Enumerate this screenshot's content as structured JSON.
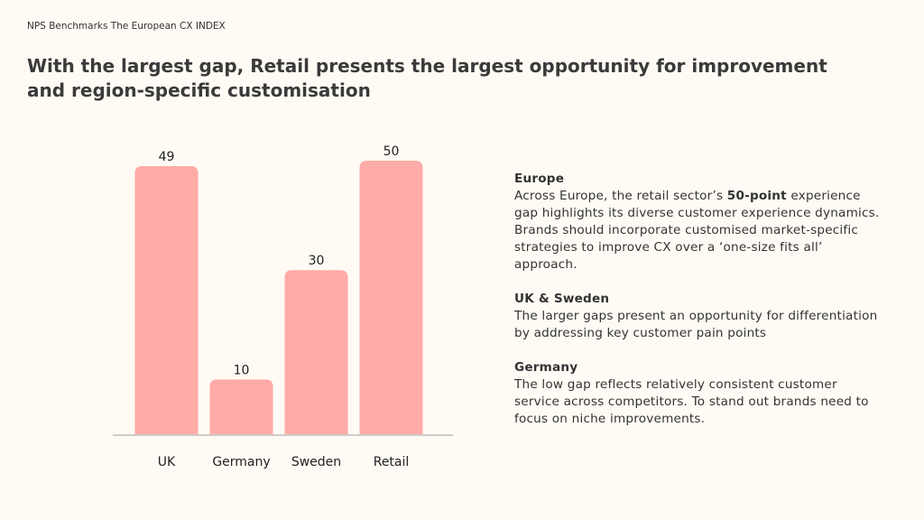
{
  "header": {
    "kicker": "NPS Benchmarks The European CX INDEX",
    "title": "With the largest gap, Retail presents the largest opportunity for improvement and region-specific customisation"
  },
  "chart_data": {
    "type": "bar",
    "categories": [
      "UK",
      "Germany",
      "Sweden",
      "Retail"
    ],
    "values": [
      49,
      10,
      30,
      50
    ],
    "color": "#ffaba7"
  },
  "notes": [
    {
      "heading": "Europe",
      "body": [
        "Across Europe, the retail sector’s ",
        "50-point",
        " experience gap highlights its diverse customer experience dynamics. Brands should incorporate customised market-specific strategies to improve CX over a ‘one-size fits all’ approach."
      ]
    },
    {
      "heading": "UK & Sweden",
      "body": [
        "The larger gaps present an opportunity for differentiation by addressing key customer pain points"
      ]
    },
    {
      "heading": "Germany",
      "body": [
        "The low gap reflects relatively consistent customer service across competitors. To stand out brands need to focus on niche improvements."
      ]
    }
  ]
}
